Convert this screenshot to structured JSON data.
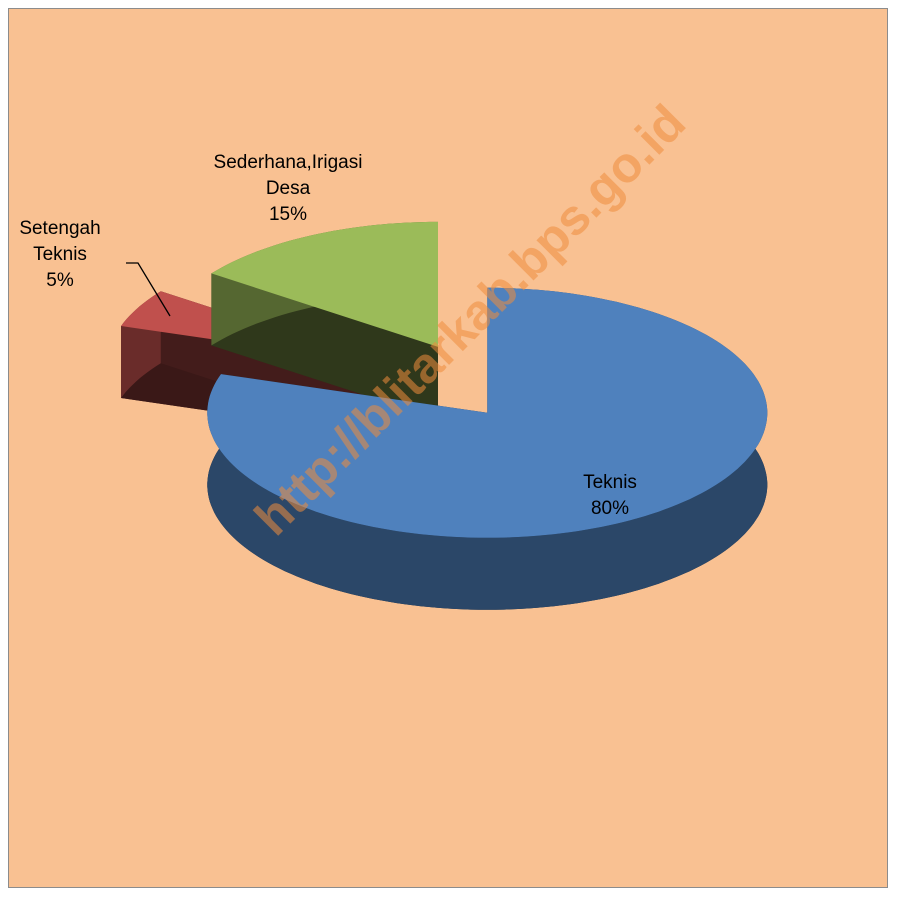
{
  "chart_data": {
    "type": "pie",
    "categories": [
      "Teknis",
      "Setengah Teknis",
      "Sederhana,Irigasi Desa"
    ],
    "values": [
      80,
      5,
      15
    ],
    "value_labels": [
      "80%",
      "5%",
      "15%"
    ],
    "colors": [
      "#4f81bd",
      "#c0504d",
      "#9bbb59"
    ],
    "watermark": "http://blitarkab.bps.go.id"
  }
}
